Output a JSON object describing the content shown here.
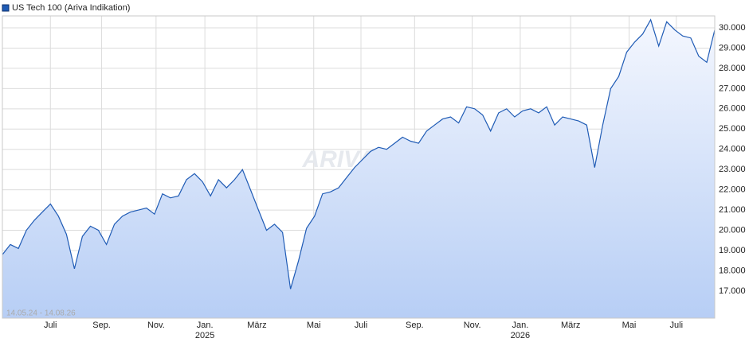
{
  "chart_data": {
    "type": "area",
    "title": "US Tech 100 (Ariva Indikation)",
    "subtitle": "14.05.24 - 14.08.26",
    "watermark": "ARIVA.DE",
    "series": [
      {
        "name": "US Tech 100 (Ariva Indikation)",
        "color": "#1f5bb5",
        "values": [
          18800,
          19300,
          19100,
          20000,
          20500,
          20900,
          21300,
          20700,
          19800,
          18100,
          19700,
          20200,
          20000,
          19300,
          20300,
          20700,
          20900,
          21000,
          21100,
          20800,
          21800,
          21600,
          21700,
          22500,
          22800,
          22400,
          21700,
          22500,
          22100,
          22500,
          23000,
          22000,
          21000,
          20000,
          20300,
          19900,
          17100,
          18500,
          20100,
          20700,
          21800,
          21900,
          22100,
          22600,
          23100,
          23500,
          23900,
          24100,
          24000,
          24300,
          24600,
          24400,
          24300,
          24900,
          25200,
          25500,
          25600,
          25300,
          26100,
          26000,
          25700,
          24900,
          25800,
          26000,
          25600,
          25900,
          26000,
          25800,
          26100,
          25200,
          25600,
          25500,
          25400,
          25200,
          23100,
          25200,
          27000,
          27600,
          28800,
          29300,
          29700,
          30400,
          29100,
          30300,
          29900,
          29600,
          29500,
          28600,
          28300,
          29900
        ]
      }
    ],
    "xlim": [
      0,
      89
    ],
    "xticks": [
      {
        "value": 6.0,
        "label": "Juli"
      },
      {
        "value": 12.4,
        "label": "Sep."
      },
      {
        "value": 19.2,
        "label": "Nov."
      },
      {
        "value": 25.3,
        "label": "Jan. 2025"
      },
      {
        "value": 31.8,
        "label": "März"
      },
      {
        "value": 38.9,
        "label": "Mai"
      },
      {
        "value": 44.8,
        "label": "Juli"
      },
      {
        "value": 51.5,
        "label": "Sep."
      },
      {
        "value": 58.7,
        "label": "Nov."
      },
      {
        "value": 64.7,
        "label": "Jan. 2026"
      },
      {
        "value": 71.0,
        "label": "März"
      },
      {
        "value": 78.3,
        "label": "Mai"
      },
      {
        "value": 84.2,
        "label": "Juli"
      }
    ],
    "ylim": [
      15660,
      30590
    ],
    "yticks": [
      {
        "value": 17000,
        "label": "17.000"
      },
      {
        "value": 18000,
        "label": "18.000"
      },
      {
        "value": 19000,
        "label": "19.000"
      },
      {
        "value": 20000,
        "label": "20.000"
      },
      {
        "value": 21000,
        "label": "21.000"
      },
      {
        "value": 22000,
        "label": "22.000"
      },
      {
        "value": 23000,
        "label": "23.000"
      },
      {
        "value": 24000,
        "label": "24.000"
      },
      {
        "value": 25000,
        "label": "25.000"
      },
      {
        "value": 26000,
        "label": "26.000"
      },
      {
        "value": 27000,
        "label": "27.000"
      },
      {
        "value": 28000,
        "label": "28.000"
      },
      {
        "value": 29000,
        "label": "29.000"
      },
      {
        "value": 30000,
        "label": "30.000"
      }
    ],
    "grid": true
  }
}
